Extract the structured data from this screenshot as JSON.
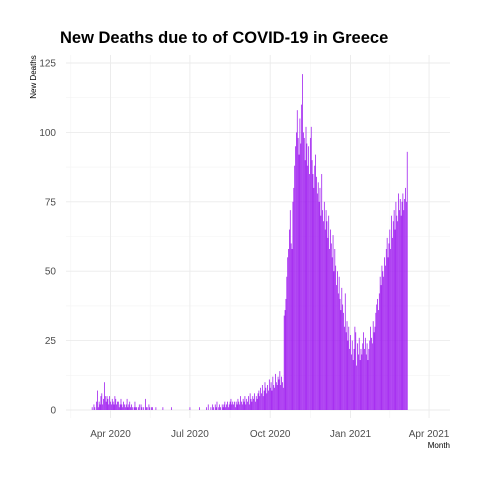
{
  "chart_data": {
    "type": "bar",
    "title": "New Deaths due to of COVID-19 in Greece",
    "xlabel": "Month",
    "ylabel": "New Deaths",
    "bar_color": "#a020f0",
    "grid": true,
    "ylim": [
      0,
      125
    ],
    "y_ticks": [
      0,
      25,
      50,
      75,
      100,
      125
    ],
    "xlim": [
      "2020-02-10",
      "2021-04-25"
    ],
    "x_ticks": [
      {
        "date": "2020-04-01",
        "label": "Apr 2020"
      },
      {
        "date": "2020-07-01",
        "label": "Jul 2020"
      },
      {
        "date": "2020-10-01",
        "label": "Oct 2020"
      },
      {
        "date": "2021-01-01",
        "label": "Jan 2021"
      },
      {
        "date": "2021-04-01",
        "label": "Apr 2021"
      }
    ],
    "start_date": "2020-03-11",
    "values": [
      1,
      0,
      2,
      1,
      0,
      3,
      7,
      1,
      3,
      2,
      5,
      6,
      2,
      4,
      10,
      5,
      3,
      5,
      4,
      2,
      5,
      3,
      2,
      4,
      3,
      2,
      5,
      4,
      2,
      3,
      3,
      1,
      2,
      4,
      2,
      1,
      3,
      2,
      1,
      2,
      4,
      1,
      2,
      3,
      1,
      2,
      1,
      0,
      1,
      3,
      1,
      1,
      0,
      1,
      2,
      0,
      2,
      1,
      0,
      1,
      0,
      4,
      1,
      1,
      0,
      2,
      1,
      0,
      1,
      1,
      0,
      0,
      0,
      1,
      0,
      0,
      0,
      0,
      0,
      0,
      0,
      1,
      0,
      0,
      0,
      0,
      0,
      0,
      0,
      0,
      0,
      1,
      0,
      0,
      0,
      0,
      0,
      0,
      0,
      0,
      0,
      0,
      0,
      0,
      0,
      0,
      0,
      0,
      0,
      0,
      0,
      0,
      1,
      0,
      0,
      0,
      0,
      0,
      0,
      0,
      0,
      0,
      0,
      1,
      0,
      0,
      0,
      0,
      0,
      0,
      0,
      1,
      0,
      2,
      0,
      0,
      1,
      0,
      2,
      1,
      0,
      2,
      1,
      3,
      0,
      1,
      2,
      1,
      0,
      2,
      1,
      2,
      3,
      1,
      2,
      3,
      1,
      2,
      3,
      4,
      2,
      3,
      2,
      3,
      1,
      3,
      2,
      4,
      3,
      2,
      5,
      3,
      2,
      4,
      3,
      5,
      2,
      4,
      3,
      5,
      2,
      6,
      4,
      3,
      5,
      4,
      6,
      3,
      5,
      4,
      6,
      7,
      5,
      8,
      6,
      9,
      5,
      7,
      10,
      8,
      6,
      9,
      7,
      11,
      8,
      10,
      7,
      12,
      9,
      8,
      13,
      10,
      9,
      12,
      11,
      14,
      9,
      12,
      10,
      8,
      34,
      36,
      40,
      48,
      55,
      58,
      65,
      72,
      60,
      58,
      75,
      80,
      88,
      95,
      100,
      108,
      98,
      92,
      105,
      96,
      110,
      121,
      100,
      98,
      90,
      102,
      96,
      88,
      95,
      85,
      98,
      102,
      90,
      85,
      80,
      88,
      92,
      84,
      78,
      82,
      75,
      80,
      70,
      85,
      72,
      68,
      75,
      65,
      72,
      68,
      62,
      70,
      58,
      65,
      60,
      55,
      63,
      50,
      58,
      52,
      45,
      50,
      42,
      48,
      40,
      36,
      44,
      38,
      35,
      30,
      42,
      28,
      32,
      25,
      30,
      22,
      27,
      20,
      25,
      18,
      22,
      30,
      28,
      16,
      24,
      20,
      26,
      18,
      22,
      20,
      24,
      28,
      22,
      26,
      20,
      24,
      18,
      22,
      25,
      30,
      26,
      24,
      32,
      28,
      30,
      35,
      38,
      40,
      36,
      42,
      48,
      45,
      52,
      50,
      48,
      55,
      52,
      58,
      62,
      55,
      60,
      65,
      58,
      70,
      62,
      68,
      72,
      65,
      75,
      70,
      68,
      78,
      72,
      76,
      70,
      75,
      78,
      72,
      76,
      80,
      75,
      93
    ]
  }
}
